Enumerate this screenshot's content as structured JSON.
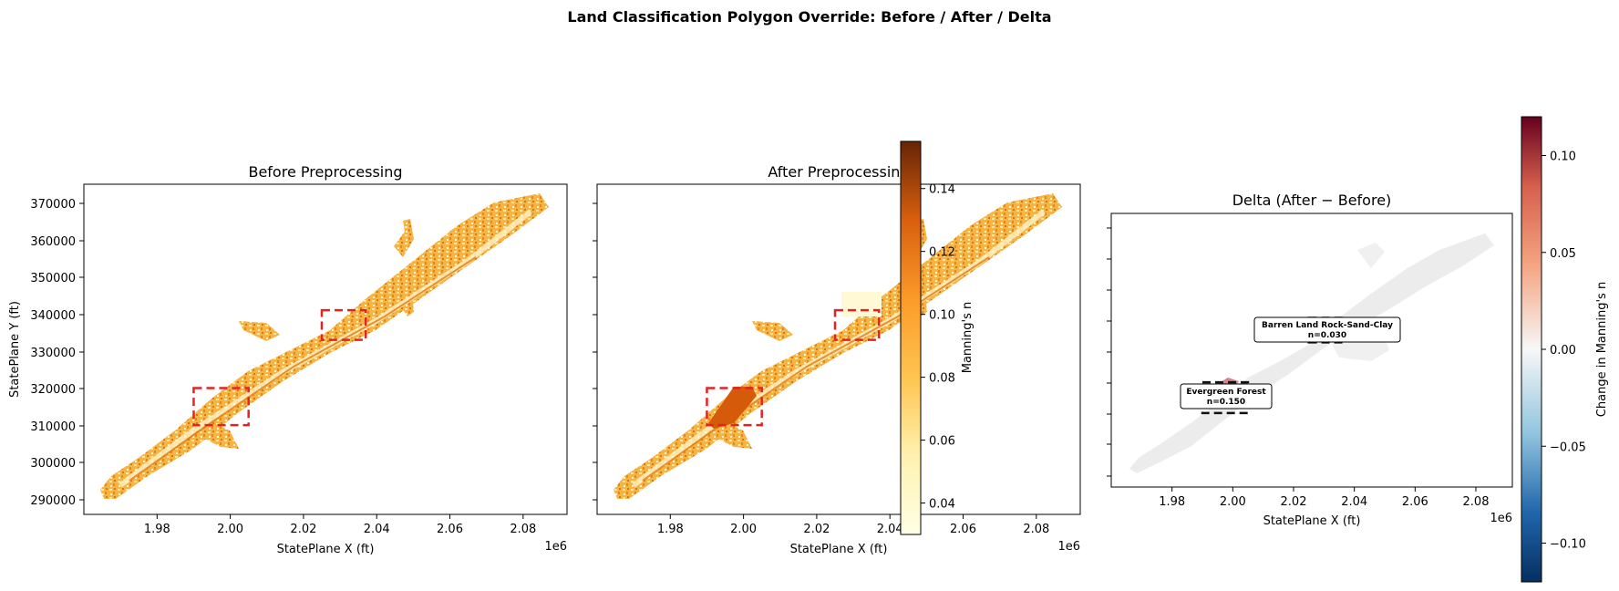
{
  "figure_title": "Land Classification Polygon Override: Before / After / Delta",
  "chart_data": [
    {
      "type": "map",
      "title": "Before Preprocessing",
      "xlabel": "StatePlane X (ft)",
      "ylabel": "StatePlane Y (ft)",
      "x_offset_label": "1e6",
      "xticks": [
        "1.98",
        "2.00",
        "2.02",
        "2.04",
        "2.06",
        "2.08"
      ],
      "yticks": [
        "290000",
        "300000",
        "310000",
        "320000",
        "330000",
        "340000",
        "350000",
        "360000",
        "370000"
      ],
      "override_boxes": [
        {
          "x": [
            1.99,
            2.005
          ],
          "y": [
            310000,
            320000
          ],
          "color": "#e32222"
        },
        {
          "x": [
            2.025,
            2.037
          ],
          "y": [
            333000,
            341000
          ],
          "color": "#e32222"
        }
      ]
    },
    {
      "type": "map",
      "title": "After Preprocessing",
      "xlabel": "StatePlane X (ft)",
      "x_offset_label": "1e6",
      "xticks": [
        "1.98",
        "2.00",
        "2.02",
        "2.04",
        "2.06",
        "2.08"
      ],
      "override_boxes": [
        {
          "x": [
            1.99,
            2.005
          ],
          "y": [
            310000,
            320000
          ],
          "color": "#e32222",
          "fill_n": 0.15
        },
        {
          "x": [
            2.025,
            2.037
          ],
          "y": [
            333000,
            341000
          ],
          "color": "#e32222",
          "fill_n": 0.03
        }
      ],
      "colorbar": {
        "label": "Manning's n",
        "ticks": [
          "0.04",
          "0.06",
          "0.08",
          "0.10",
          "0.12",
          "0.14"
        ],
        "range": [
          0.03,
          0.155
        ],
        "colormap": "YlOrBr"
      }
    },
    {
      "type": "map",
      "title": "Delta (After − Before)",
      "xlabel": "StatePlane X (ft)",
      "x_offset_label": "1e6",
      "xticks": [
        "1.98",
        "2.00",
        "2.02",
        "2.04",
        "2.06",
        "2.08"
      ],
      "override_boxes": [
        {
          "x": [
            1.99,
            2.005
          ],
          "y": [
            310000,
            320000
          ],
          "color": "#111111"
        },
        {
          "x": [
            2.025,
            2.037
          ],
          "y": [
            333000,
            341000
          ],
          "color": "#111111"
        }
      ],
      "annotations": [
        {
          "line1": "Barren Land Rock-Sand-Clay",
          "line2": "n=0.030"
        },
        {
          "line1": "Evergreen Forest",
          "line2": "n=0.150"
        }
      ],
      "colorbar": {
        "label": "Change in Manning's n",
        "ticks": [
          "−0.10",
          "−0.05",
          "0.00",
          "0.05",
          "0.10"
        ],
        "range": [
          -0.12,
          0.12
        ],
        "colormap": "RdBu_r"
      }
    }
  ]
}
